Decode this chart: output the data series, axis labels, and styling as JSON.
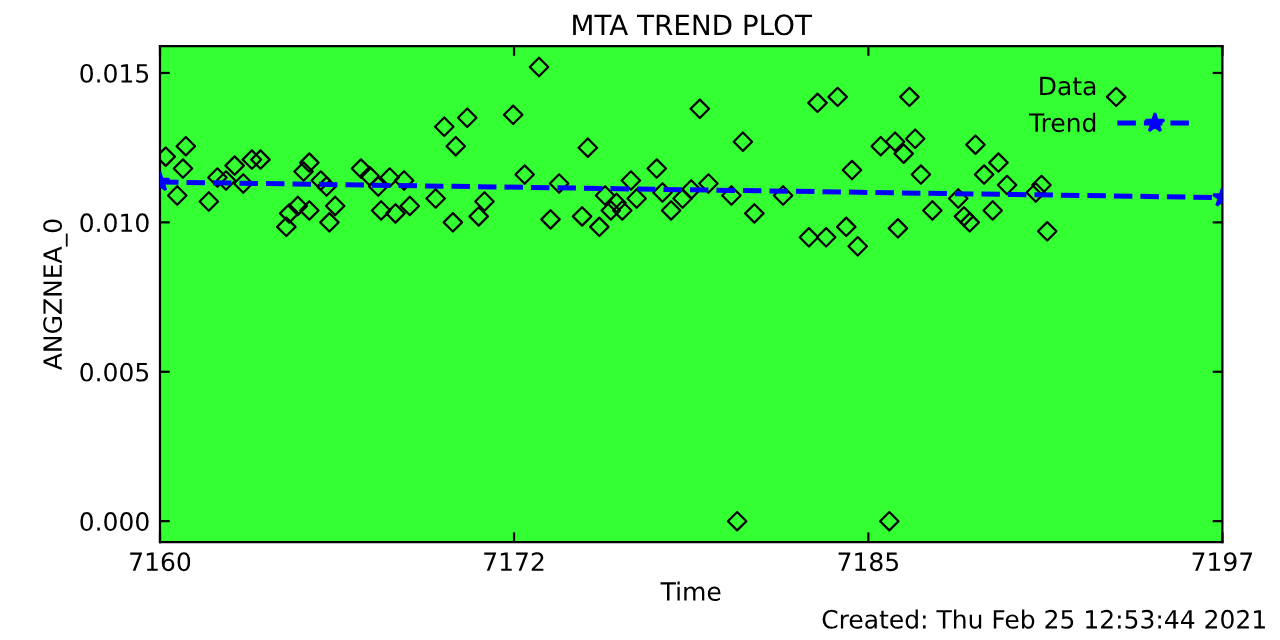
{
  "chart_data": {
    "type": "scatter",
    "title": "MTA TREND PLOT",
    "xlabel": "Time",
    "ylabel": "ANGZNEA_0",
    "xlim": [
      7160,
      7197
    ],
    "xticks": [
      {
        "value": 7160,
        "label": "7160"
      },
      {
        "value": 7172.33,
        "label": "7172"
      },
      {
        "value": 7184.67,
        "label": "7185"
      },
      {
        "value": 7197,
        "label": "7197"
      }
    ],
    "ylim": [
      -0.0007,
      0.0159
    ],
    "yticks": [
      {
        "value": 0,
        "label": "0.000"
      },
      {
        "value": 0.005,
        "label": "0.005"
      },
      {
        "value": 0.01,
        "label": "0.010"
      },
      {
        "value": 0.015,
        "label": "0.015"
      }
    ],
    "grid": false,
    "legend": "top right",
    "annotations": [
      "Created: Thu Feb 25 12:53:44 2021"
    ],
    "series": [
      {
        "name": "Data",
        "marker": "diamond",
        "color": "#000000",
        "x": [
          7160.2,
          7160.9,
          7160.8,
          7160.6,
          7161.7,
          7162.0,
          7162.3,
          7162.6,
          7162.9,
          7163.2,
          7163.5,
          7164.4,
          7164.5,
          7164.8,
          7165.2,
          7165.2,
          7165.0,
          7165.6,
          7165.8,
          7166.1,
          7165.9,
          7167.0,
          7167.3,
          7167.6,
          7168.0,
          7168.5,
          7167.7,
          7168.2,
          7168.7,
          7169.6,
          7170.2,
          7169.9,
          7170.3,
          7170.7,
          7171.1,
          7171.3,
          7172.3,
          7172.7,
          7173.2,
          7173.6,
          7173.9,
          7174.7,
          7174.9,
          7175.3,
          7175.5,
          7175.7,
          7175.9,
          7176.1,
          7176.4,
          7176.6,
          7177.3,
          7177.5,
          7177.8,
          7178.2,
          7178.5,
          7178.8,
          7179.1,
          7179.9,
          7180.3,
          7180.7,
          7181.7,
          7182.6,
          7182.9,
          7183.2,
          7183.6,
          7183.9,
          7184.1,
          7184.3,
          7185.1,
          7186.1,
          7185.6,
          7185.9,
          7186.3,
          7186.5,
          7185.7,
          7186.9,
          7187.8,
          7188.0,
          7188.2,
          7188.4,
          7188.7,
          7189.2,
          7189.5,
          7189.0,
          7190.5,
          7190.7,
          7190.9,
          7193.3,
          7180.1,
          7185.4
        ],
        "values": [
          0.0122,
          0.01255,
          0.0118,
          0.0109,
          0.0107,
          0.0115,
          0.0114,
          0.0119,
          0.0113,
          0.0121,
          0.0121,
          0.00985,
          0.0103,
          0.01055,
          0.0104,
          0.012,
          0.0117,
          0.0114,
          0.0112,
          0.01055,
          0.01,
          0.0118,
          0.01155,
          0.0112,
          0.0115,
          0.0114,
          0.0104,
          0.0103,
          0.01055,
          0.0108,
          0.01,
          0.0132,
          0.01255,
          0.0135,
          0.0102,
          0.0107,
          0.0136,
          0.0116,
          0.0152,
          0.0101,
          0.0113,
          0.0102,
          0.0125,
          0.00985,
          0.0109,
          0.0104,
          0.01065,
          0.0104,
          0.0114,
          0.0108,
          0.0118,
          0.011,
          0.0104,
          0.0108,
          0.0111,
          0.0138,
          0.0113,
          0.0109,
          0.0127,
          0.0103,
          0.0109,
          0.0095,
          0.014,
          0.0095,
          0.0142,
          0.00985,
          0.01175,
          0.0092,
          0.01255,
          0.0142,
          0.0127,
          0.0123,
          0.0128,
          0.0116,
          0.0098,
          0.0104,
          0.0108,
          0.0102,
          0.01,
          0.0126,
          0.0116,
          0.012,
          0.01125,
          0.0104,
          0.011,
          0.01125,
          0.0097,
          0.0142,
          0.0,
          0.0
        ]
      },
      {
        "name": "Trend",
        "type": "line",
        "marker": "star",
        "line_style": "dashed",
        "color": "#0000ff",
        "x": [
          7160,
          7197
        ],
        "values": [
          0.01135,
          0.01083
        ]
      }
    ]
  }
}
